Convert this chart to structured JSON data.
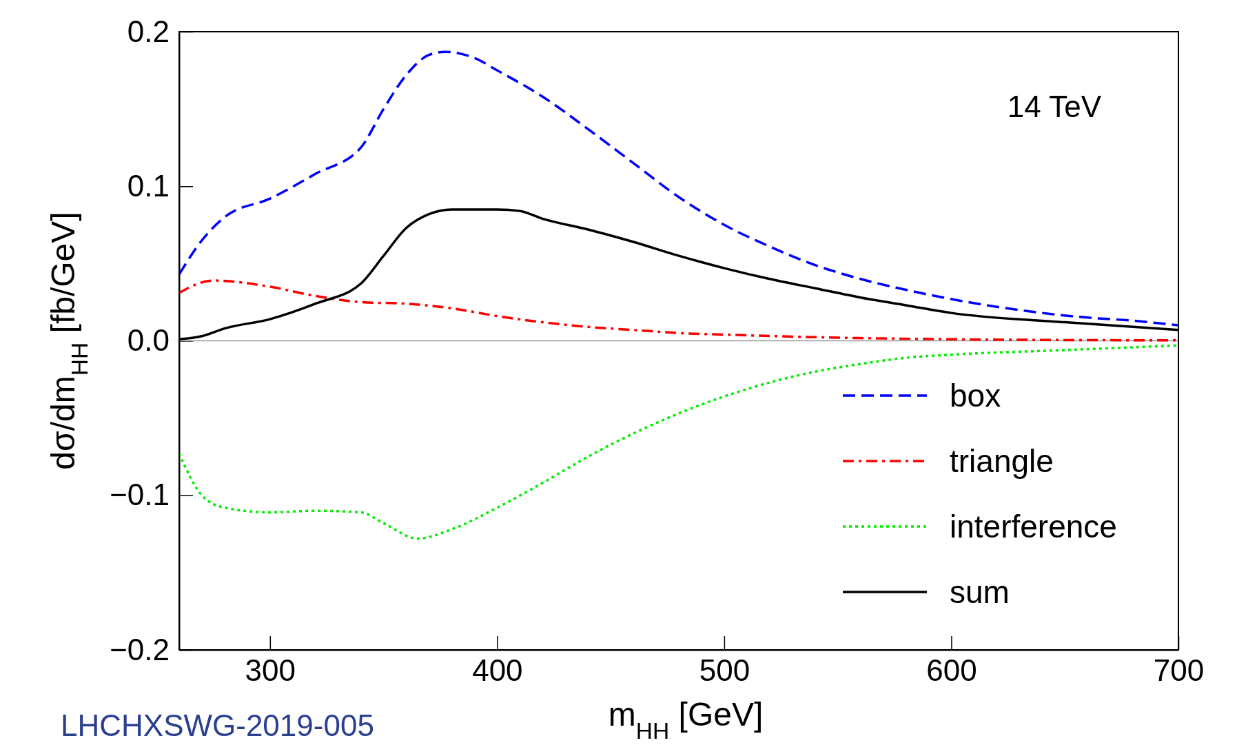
{
  "chart_data": {
    "type": "line",
    "xlabel": "m$_{HH}$ [GeV]",
    "ylabel": "dσ/dm$_{HH}$ [fb/GeV]",
    "annotations": [
      "14 TeV",
      "LHCHXSWG-2019-005"
    ],
    "xlim": [
      260,
      700
    ],
    "xticks": [
      300,
      400,
      500,
      600,
      700
    ],
    "ylim": [
      -0.2,
      0.2
    ],
    "yticks": [
      {
        "value": -0.2,
        "label": "−0.2"
      },
      {
        "value": -0.1,
        "label": "−0.1"
      },
      {
        "value": 0,
        "label": "0.0"
      },
      {
        "value": 0.1,
        "label": "0.1"
      },
      {
        "value": 0.2,
        "label": "0.2"
      }
    ],
    "ref_lines": [
      {
        "axis": "y",
        "value": 0,
        "color": "#999999"
      }
    ],
    "legend": "bottom right",
    "grid": false,
    "marker": "none",
    "series": [
      {
        "name": "box",
        "color": "#0000ff",
        "line_style": "dashed",
        "x": [
          260,
          270,
          280,
          300,
          320,
          340,
          350,
          360,
          370,
          377,
          390,
          400,
          420,
          440,
          460,
          480,
          500,
          520,
          540,
          560,
          580,
          600,
          620,
          640,
          660,
          680,
          700
        ],
        "values": [
          0.043,
          0.065,
          0.08,
          0.092,
          0.108,
          0.125,
          0.15,
          0.172,
          0.185,
          0.187,
          0.183,
          0.175,
          0.158,
          0.137,
          0.115,
          0.093,
          0.075,
          0.061,
          0.049,
          0.04,
          0.033,
          0.027,
          0.022,
          0.018,
          0.015,
          0.013,
          0.01
        ]
      },
      {
        "name": "triangle",
        "color": "#ff0000",
        "line_style": "dashdot",
        "x": [
          260,
          275,
          300,
          320,
          340,
          360,
          380,
          400,
          420,
          440,
          460,
          480,
          500,
          550,
          600,
          650,
          700
        ],
        "values": [
          0.031,
          0.039,
          0.035,
          0.029,
          0.025,
          0.024,
          0.021,
          0.016,
          0.012,
          0.009,
          0.007,
          0.005,
          0.004,
          0.002,
          0.001,
          0.0005,
          0.0003
        ]
      },
      {
        "name": "interference",
        "color": "#00ee00",
        "line_style": "dotted",
        "x": [
          260,
          270,
          280,
          300,
          320,
          340,
          350,
          365,
          380,
          400,
          420,
          440,
          460,
          480,
          500,
          520,
          540,
          560,
          580,
          600,
          650,
          700
        ],
        "values": [
          -0.073,
          -0.1,
          -0.108,
          -0.111,
          -0.11,
          -0.111,
          -0.118,
          -0.128,
          -0.122,
          -0.108,
          -0.092,
          -0.075,
          -0.06,
          -0.047,
          -0.036,
          -0.027,
          -0.02,
          -0.015,
          -0.011,
          -0.009,
          -0.006,
          -0.003
        ]
      },
      {
        "name": "sum",
        "color": "#000000",
        "line_style": "solid",
        "x": [
          260,
          270,
          280,
          300,
          320,
          340,
          350,
          360,
          370,
          380,
          400,
          410,
          420,
          440,
          460,
          480,
          500,
          520,
          540,
          560,
          580,
          600,
          650,
          700
        ],
        "values": [
          0.001,
          0.003,
          0.008,
          0.014,
          0.024,
          0.037,
          0.055,
          0.073,
          0.082,
          0.085,
          0.085,
          0.084,
          0.079,
          0.072,
          0.064,
          0.055,
          0.047,
          0.04,
          0.034,
          0.028,
          0.023,
          0.018,
          0.012,
          0.007
        ]
      }
    ]
  }
}
